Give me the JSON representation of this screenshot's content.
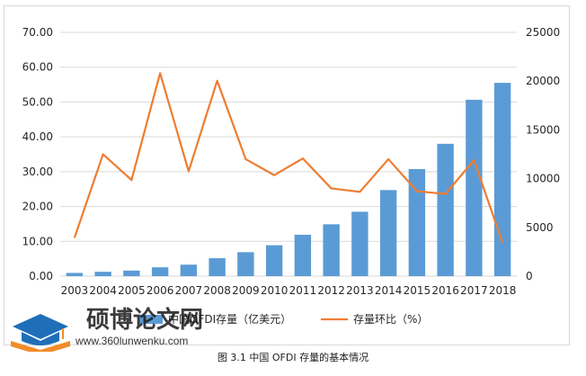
{
  "chart_data": {
    "type": "bar",
    "categories": [
      "2003",
      "2004",
      "2005",
      "2006",
      "2007",
      "2008",
      "2009",
      "2010",
      "2011",
      "2012",
      "2013",
      "2014",
      "2015",
      "2016",
      "2017",
      "2018"
    ],
    "series": [
      {
        "name": "中国OFDI存量（亿美元）",
        "type": "bar",
        "axis": "right",
        "values": [
          332,
          448,
          572,
          906,
          1179,
          1840,
          2458,
          3172,
          4248,
          5319,
          6605,
          8826,
          10979,
          13574,
          18090,
          19823
        ],
        "color": "#5b9bd5"
      },
      {
        "name": "存量环比（%）",
        "type": "line",
        "axis": "left",
        "values": [
          11.0,
          35.0,
          27.6,
          58.3,
          30.1,
          56.1,
          33.6,
          29.0,
          33.8,
          25.2,
          24.2,
          33.6,
          24.4,
          23.6,
          33.3,
          9.6
        ],
        "color": "#ed7d31"
      }
    ],
    "y_left": {
      "min": 0,
      "max": 70,
      "step": 10,
      "tick_labels": [
        "0.00",
        "10.00",
        "20.00",
        "30.00",
        "40.00",
        "50.00",
        "60.00",
        "70.00"
      ]
    },
    "y_right": {
      "min": 0,
      "max": 25000,
      "step": 5000,
      "tick_labels": [
        "0",
        "5000",
        "10000",
        "15000",
        "20000",
        "25000"
      ]
    },
    "grid": true,
    "legend_position": "bottom"
  },
  "caption": "图 3.1 中国 OFDI 存量的基本情况",
  "watermark": {
    "title": "硕博论文网",
    "url": "www.360lunwenku.com"
  }
}
